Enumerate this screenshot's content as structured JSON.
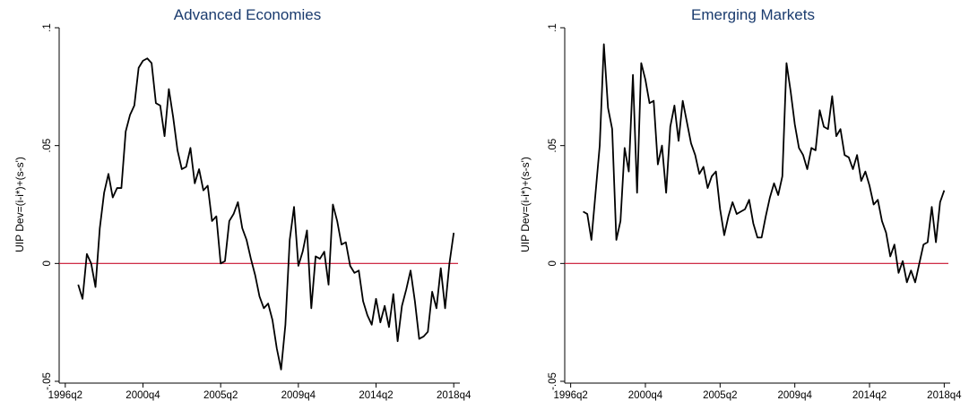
{
  "colors": {
    "line": "#000000",
    "zero_line": "#c8102e",
    "title": "#1a3b6e",
    "axis": "#000000"
  },
  "chart_data": [
    {
      "type": "line",
      "title": "Advanced Economies",
      "ylabel": "UIP Dev=(i-i*)+(s-s')",
      "xlabel": "",
      "xlim": [
        "1996q1",
        "2019q1"
      ],
      "ylim": [
        -0.05,
        0.1
      ],
      "x_ticks": [
        "1996q2",
        "2000q4",
        "2005q2",
        "2009q4",
        "2014q2",
        "2018q4"
      ],
      "y_ticks": [
        {
          "value": -0.05,
          "label": "-.05"
        },
        {
          "value": 0,
          "label": "0"
        },
        {
          "value": 0.05,
          "label": ".05"
        },
        {
          "value": 0.1,
          "label": ".1"
        }
      ],
      "reference_line": {
        "y": 0
      },
      "grid": false,
      "series": [
        {
          "x_start": "1997q1",
          "frequency": "quarterly",
          "values": [
            -0.009,
            -0.015,
            0.004,
            0.0,
            -0.01,
            0.015,
            0.03,
            0.038,
            0.028,
            0.032,
            0.032,
            0.056,
            0.063,
            0.067,
            0.083,
            0.086,
            0.087,
            0.085,
            0.068,
            0.067,
            0.054,
            0.074,
            0.062,
            0.048,
            0.04,
            0.041,
            0.049,
            0.034,
            0.04,
            0.031,
            0.033,
            0.018,
            0.02,
            0.0,
            0.001,
            0.018,
            0.021,
            0.026,
            0.015,
            0.01,
            0.002,
            -0.005,
            -0.014,
            -0.019,
            -0.017,
            -0.024,
            -0.036,
            -0.045,
            -0.026,
            0.01,
            0.024,
            -0.001,
            0.005,
            0.014,
            -0.019,
            0.003,
            0.002,
            0.005,
            -0.009,
            0.025,
            0.018,
            0.008,
            0.009,
            -0.001,
            -0.004,
            -0.003,
            -0.016,
            -0.022,
            -0.026,
            -0.015,
            -0.025,
            -0.018,
            -0.027,
            -0.013,
            -0.033,
            -0.018,
            -0.011,
            -0.003,
            -0.016,
            -0.032,
            -0.031,
            -0.029,
            -0.012,
            -0.019,
            -0.002,
            -0.019,
            0.0,
            0.013
          ]
        }
      ]
    },
    {
      "type": "line",
      "title": "Emerging Markets",
      "ylabel": "UIP Dev=(i-i*)+(s-s')",
      "xlabel": "",
      "xlim": [
        "1996q1",
        "2019q1"
      ],
      "ylim": [
        -0.05,
        0.1
      ],
      "x_ticks": [
        "1996q2",
        "2000q4",
        "2005q2",
        "2009q4",
        "2014q2",
        "2018q4"
      ],
      "y_ticks": [
        {
          "value": -0.05,
          "label": "-.05"
        },
        {
          "value": 0,
          "label": "0"
        },
        {
          "value": 0.05,
          "label": ".05"
        },
        {
          "value": 0.1,
          "label": ".1"
        }
      ],
      "reference_line": {
        "y": 0
      },
      "grid": false,
      "series": [
        {
          "x_start": "1997q1",
          "frequency": "quarterly",
          "values": [
            0.022,
            0.021,
            0.01,
            0.03,
            0.05,
            0.093,
            0.066,
            0.057,
            0.01,
            0.018,
            0.049,
            0.039,
            0.08,
            0.03,
            0.085,
            0.078,
            0.068,
            0.069,
            0.042,
            0.05,
            0.03,
            0.058,
            0.067,
            0.052,
            0.069,
            0.06,
            0.051,
            0.046,
            0.038,
            0.041,
            0.032,
            0.037,
            0.039,
            0.023,
            0.012,
            0.02,
            0.026,
            0.021,
            0.022,
            0.023,
            0.027,
            0.017,
            0.011,
            0.011,
            0.02,
            0.028,
            0.034,
            0.029,
            0.037,
            0.085,
            0.073,
            0.059,
            0.049,
            0.046,
            0.04,
            0.049,
            0.048,
            0.065,
            0.058,
            0.057,
            0.071,
            0.054,
            0.057,
            0.046,
            0.045,
            0.04,
            0.046,
            0.035,
            0.039,
            0.033,
            0.025,
            0.027,
            0.018,
            0.013,
            0.003,
            0.008,
            -0.004,
            0.001,
            -0.008,
            -0.003,
            -0.008,
            0.0,
            0.008,
            0.009,
            0.024,
            0.009,
            0.026,
            0.031
          ]
        }
      ]
    }
  ]
}
